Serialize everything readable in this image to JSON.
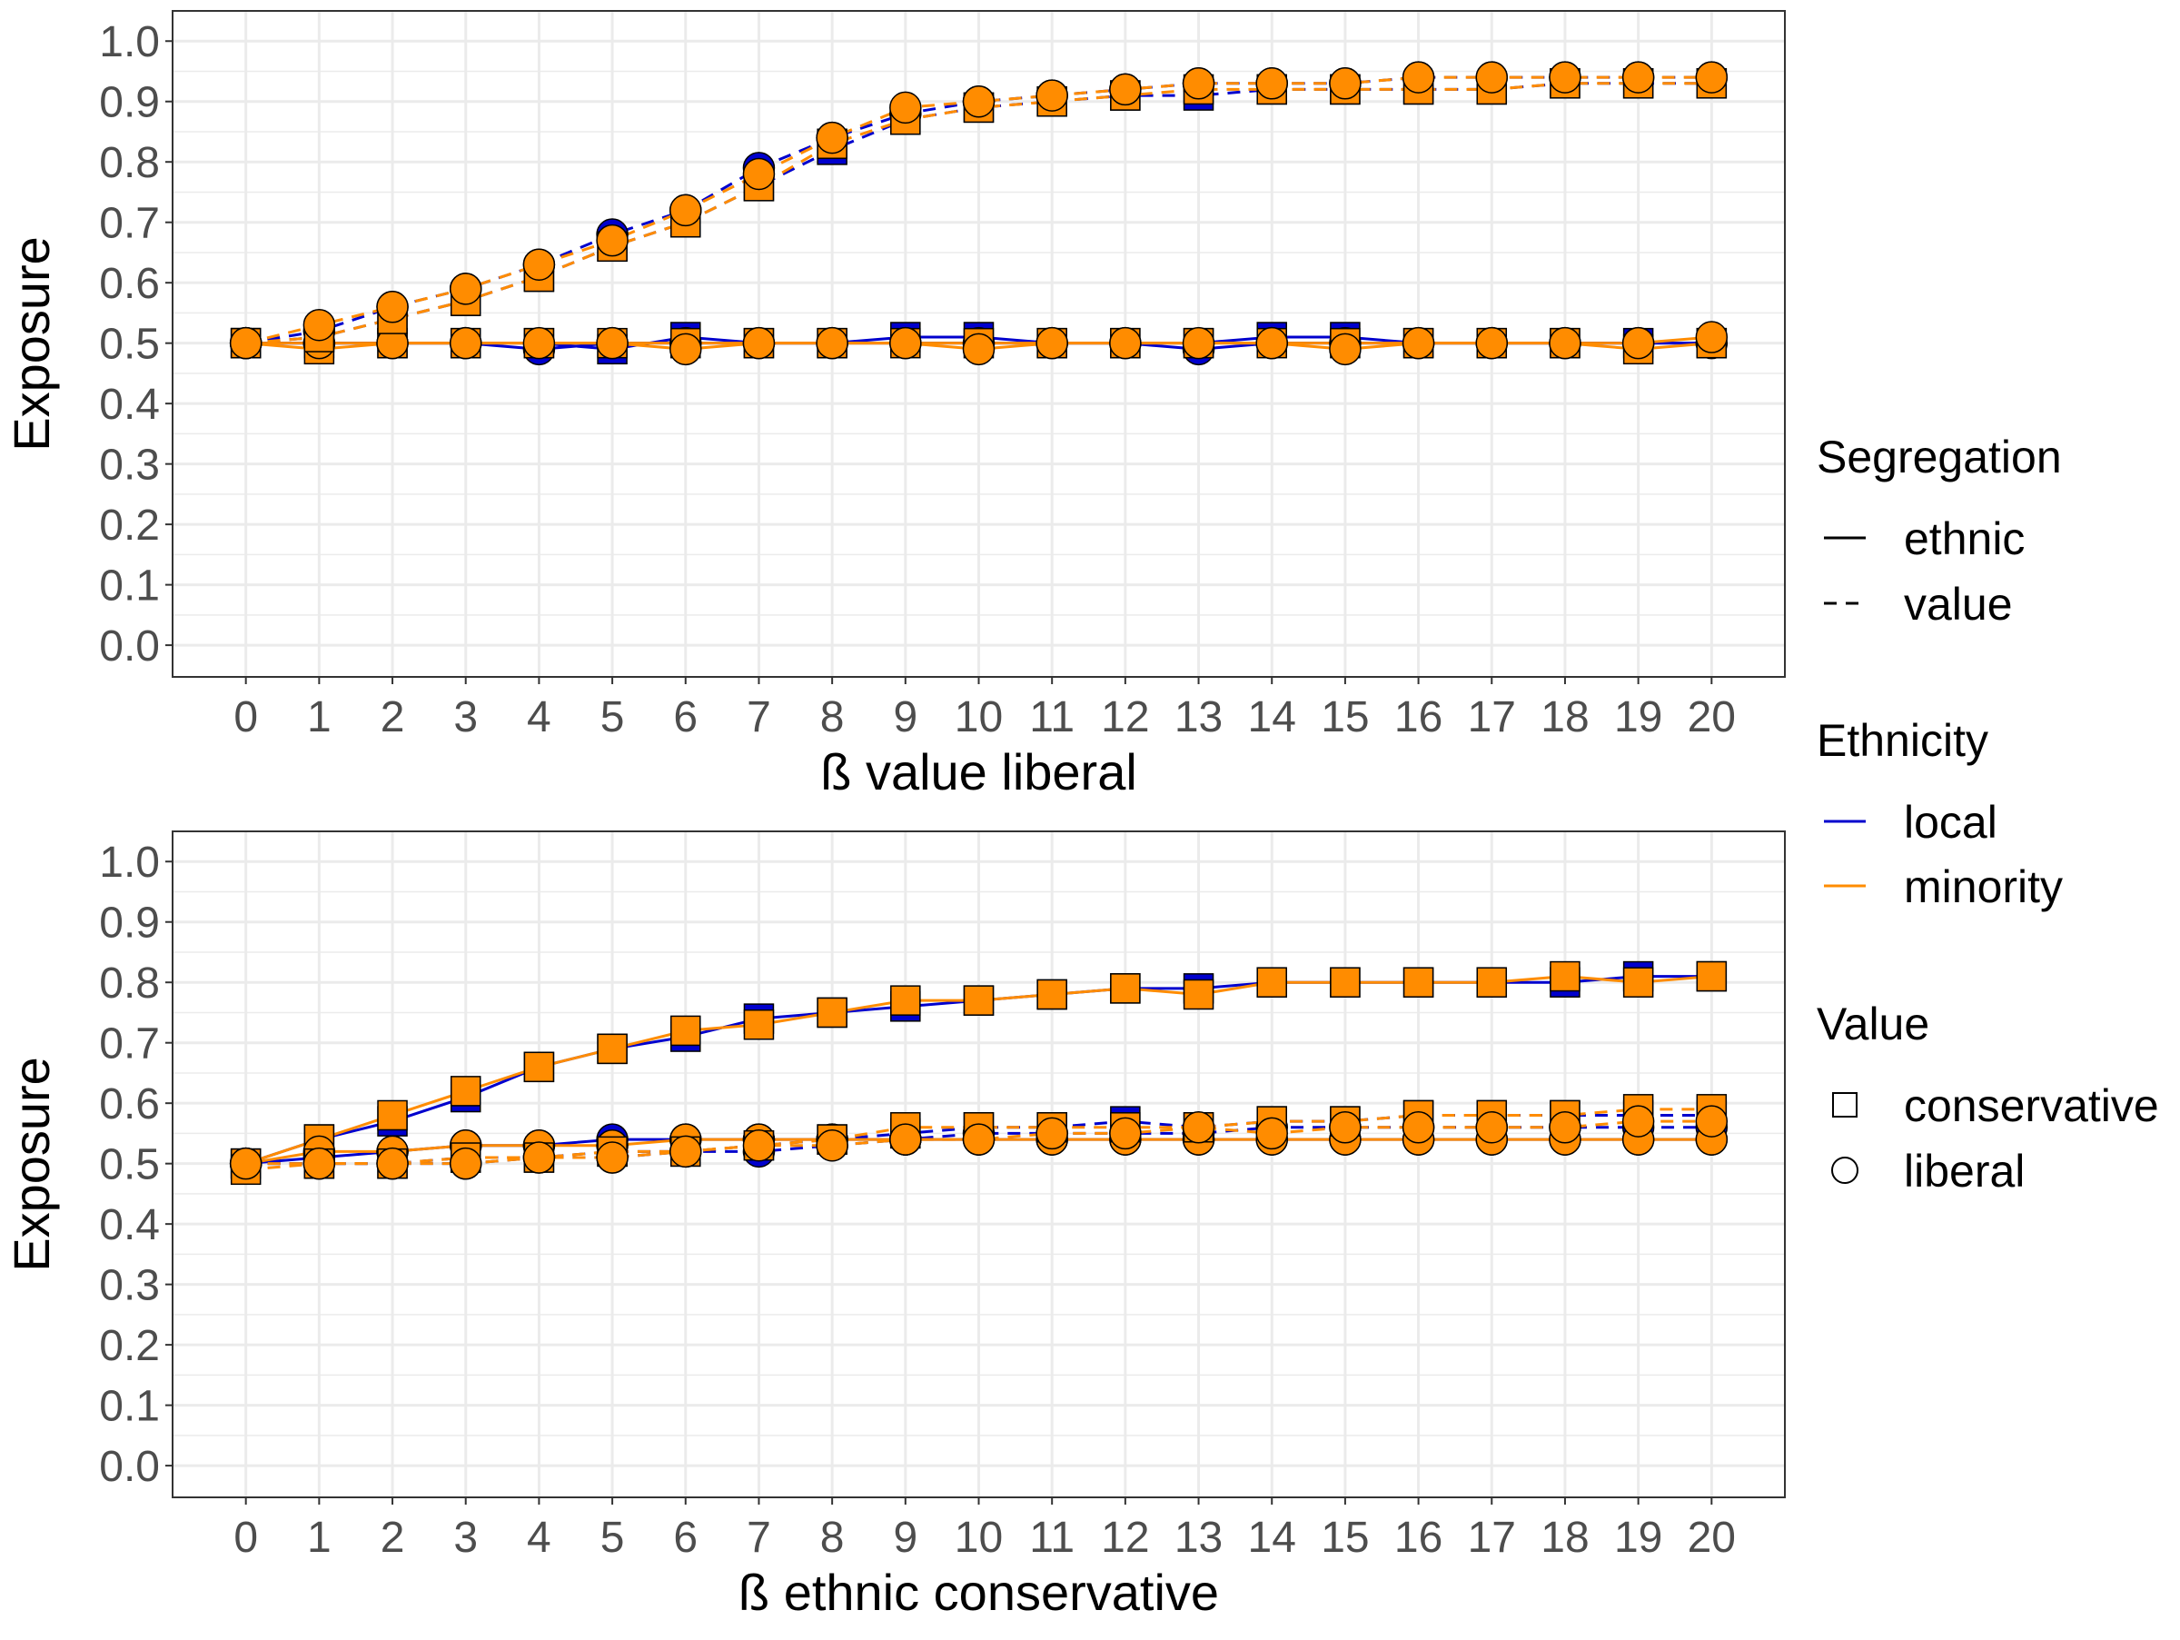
{
  "chart_data": [
    {
      "type": "line",
      "xlabel": "ß value liberal",
      "ylabel": "Exposure",
      "xlim": [
        0,
        20
      ],
      "ylim": [
        0,
        1
      ],
      "x_ticks": [
        0,
        1,
        2,
        3,
        4,
        5,
        6,
        7,
        8,
        9,
        10,
        11,
        12,
        13,
        14,
        15,
        16,
        17,
        18,
        19,
        20
      ],
      "y_ticks": [
        "0.0",
        "0.1",
        "0.2",
        "0.3",
        "0.4",
        "0.5",
        "0.6",
        "0.7",
        "0.8",
        "0.9",
        "1.0"
      ],
      "grid": true,
      "x": [
        0,
        1,
        2,
        3,
        4,
        5,
        6,
        7,
        8,
        9,
        10,
        11,
        12,
        13,
        14,
        15,
        16,
        17,
        18,
        19,
        20
      ],
      "series": [
        {
          "segregation": "ethnic",
          "ethnicity": "local",
          "value": "conservative",
          "values": [
            0.5,
            0.5,
            0.5,
            0.5,
            0.5,
            0.49,
            0.51,
            0.5,
            0.5,
            0.51,
            0.51,
            0.5,
            0.5,
            0.5,
            0.51,
            0.51,
            0.5,
            0.5,
            0.5,
            0.5,
            0.5
          ]
        },
        {
          "segregation": "ethnic",
          "ethnicity": "local",
          "value": "liberal",
          "values": [
            0.5,
            0.5,
            0.5,
            0.5,
            0.49,
            0.5,
            0.5,
            0.5,
            0.5,
            0.5,
            0.5,
            0.5,
            0.5,
            0.49,
            0.5,
            0.5,
            0.5,
            0.5,
            0.5,
            0.5,
            0.5
          ]
        },
        {
          "segregation": "ethnic",
          "ethnicity": "minority",
          "value": "conservative",
          "values": [
            0.5,
            0.49,
            0.5,
            0.5,
            0.5,
            0.5,
            0.5,
            0.5,
            0.5,
            0.5,
            0.5,
            0.5,
            0.5,
            0.5,
            0.5,
            0.5,
            0.5,
            0.5,
            0.5,
            0.49,
            0.5
          ]
        },
        {
          "segregation": "ethnic",
          "ethnicity": "minority",
          "value": "liberal",
          "values": [
            0.5,
            0.5,
            0.5,
            0.5,
            0.5,
            0.5,
            0.49,
            0.5,
            0.5,
            0.5,
            0.49,
            0.5,
            0.5,
            0.5,
            0.5,
            0.49,
            0.5,
            0.5,
            0.5,
            0.5,
            0.51
          ]
        },
        {
          "segregation": "value",
          "ethnicity": "local",
          "value": "conservative",
          "values": [
            0.5,
            0.51,
            0.54,
            0.57,
            0.61,
            0.66,
            0.7,
            0.76,
            0.82,
            0.87,
            0.89,
            0.9,
            0.91,
            0.91,
            0.92,
            0.92,
            0.92,
            0.92,
            0.93,
            0.93,
            0.93
          ]
        },
        {
          "segregation": "value",
          "ethnicity": "local",
          "value": "liberal",
          "values": [
            0.5,
            0.52,
            0.56,
            0.59,
            0.63,
            0.68,
            0.72,
            0.79,
            0.84,
            0.88,
            0.9,
            0.91,
            0.92,
            0.93,
            0.93,
            0.93,
            0.94,
            0.94,
            0.94,
            0.94,
            0.94
          ]
        },
        {
          "segregation": "value",
          "ethnicity": "minority",
          "value": "conservative",
          "values": [
            0.5,
            0.51,
            0.54,
            0.57,
            0.61,
            0.66,
            0.7,
            0.76,
            0.83,
            0.87,
            0.89,
            0.9,
            0.91,
            0.92,
            0.92,
            0.92,
            0.92,
            0.92,
            0.93,
            0.93,
            0.93
          ]
        },
        {
          "segregation": "value",
          "ethnicity": "minority",
          "value": "liberal",
          "values": [
            0.5,
            0.53,
            0.56,
            0.59,
            0.63,
            0.67,
            0.72,
            0.78,
            0.84,
            0.89,
            0.9,
            0.91,
            0.92,
            0.93,
            0.93,
            0.93,
            0.94,
            0.94,
            0.94,
            0.94,
            0.94
          ]
        }
      ]
    },
    {
      "type": "line",
      "xlabel": "ß ethnic conservative",
      "ylabel": "Exposure",
      "xlim": [
        0,
        20
      ],
      "ylim": [
        0,
        1
      ],
      "x_ticks": [
        0,
        1,
        2,
        3,
        4,
        5,
        6,
        7,
        8,
        9,
        10,
        11,
        12,
        13,
        14,
        15,
        16,
        17,
        18,
        19,
        20
      ],
      "y_ticks": [
        "0.0",
        "0.1",
        "0.2",
        "0.3",
        "0.4",
        "0.5",
        "0.6",
        "0.7",
        "0.8",
        "0.9",
        "1.0"
      ],
      "grid": true,
      "x": [
        0,
        1,
        2,
        3,
        4,
        5,
        6,
        7,
        8,
        9,
        10,
        11,
        12,
        13,
        14,
        15,
        16,
        17,
        18,
        19,
        20
      ],
      "series": [
        {
          "segregation": "ethnic",
          "ethnicity": "local",
          "value": "conservative",
          "values": [
            0.5,
            0.54,
            0.57,
            0.61,
            0.66,
            0.69,
            0.71,
            0.74,
            0.75,
            0.76,
            0.77,
            0.78,
            0.79,
            0.79,
            0.8,
            0.8,
            0.8,
            0.8,
            0.8,
            0.81,
            0.81
          ]
        },
        {
          "segregation": "ethnic",
          "ethnicity": "local",
          "value": "liberal",
          "values": [
            0.5,
            0.51,
            0.52,
            0.53,
            0.53,
            0.54,
            0.54,
            0.54,
            0.54,
            0.54,
            0.54,
            0.54,
            0.54,
            0.54,
            0.54,
            0.54,
            0.54,
            0.54,
            0.54,
            0.54,
            0.54
          ]
        },
        {
          "segregation": "ethnic",
          "ethnicity": "minority",
          "value": "conservative",
          "values": [
            0.5,
            0.54,
            0.58,
            0.62,
            0.66,
            0.69,
            0.72,
            0.73,
            0.75,
            0.77,
            0.77,
            0.78,
            0.79,
            0.78,
            0.8,
            0.8,
            0.8,
            0.8,
            0.81,
            0.8,
            0.81
          ]
        },
        {
          "segregation": "ethnic",
          "ethnicity": "minority",
          "value": "liberal",
          "values": [
            0.5,
            0.52,
            0.52,
            0.53,
            0.53,
            0.53,
            0.54,
            0.54,
            0.54,
            0.54,
            0.54,
            0.54,
            0.54,
            0.54,
            0.54,
            0.54,
            0.54,
            0.54,
            0.54,
            0.54,
            0.54
          ]
        },
        {
          "segregation": "value",
          "ethnicity": "local",
          "value": "conservative",
          "values": [
            0.5,
            0.5,
            0.5,
            0.51,
            0.51,
            0.52,
            0.52,
            0.53,
            0.54,
            0.55,
            0.56,
            0.56,
            0.57,
            0.56,
            0.57,
            0.57,
            0.58,
            0.58,
            0.58,
            0.58,
            0.58
          ]
        },
        {
          "segregation": "value",
          "ethnicity": "local",
          "value": "liberal",
          "values": [
            0.5,
            0.5,
            0.5,
            0.5,
            0.51,
            0.51,
            0.52,
            0.52,
            0.53,
            0.54,
            0.55,
            0.55,
            0.55,
            0.55,
            0.56,
            0.56,
            0.56,
            0.56,
            0.56,
            0.56,
            0.56
          ]
        },
        {
          "segregation": "value",
          "ethnicity": "minority",
          "value": "conservative",
          "values": [
            0.49,
            0.5,
            0.5,
            0.51,
            0.51,
            0.52,
            0.52,
            0.53,
            0.54,
            0.56,
            0.56,
            0.56,
            0.56,
            0.56,
            0.57,
            0.57,
            0.58,
            0.58,
            0.58,
            0.59,
            0.59
          ]
        },
        {
          "segregation": "value",
          "ethnicity": "minority",
          "value": "liberal",
          "values": [
            0.5,
            0.5,
            0.5,
            0.5,
            0.51,
            0.51,
            0.52,
            0.53,
            0.53,
            0.54,
            0.54,
            0.55,
            0.55,
            0.56,
            0.55,
            0.56,
            0.56,
            0.56,
            0.56,
            0.57,
            0.57
          ]
        }
      ]
    }
  ],
  "legend": {
    "segregation": {
      "title": "Segregation",
      "items": [
        {
          "label": "ethnic",
          "linetype": "solid"
        },
        {
          "label": "value",
          "linetype": "dashed"
        }
      ]
    },
    "ethnicity": {
      "title": "Ethnicity",
      "items": [
        {
          "label": "local",
          "color": "#0000CD"
        },
        {
          "label": "minority",
          "color": "#FF8C00"
        }
      ]
    },
    "value": {
      "title": "Value",
      "items": [
        {
          "label": "conservative",
          "shape": "square"
        },
        {
          "label": "liberal",
          "shape": "circle"
        }
      ]
    }
  },
  "colors": {
    "local": "#0000CD",
    "minority": "#FF8C00",
    "grid": "#EBEBEB",
    "text": "#4D4D4D"
  }
}
